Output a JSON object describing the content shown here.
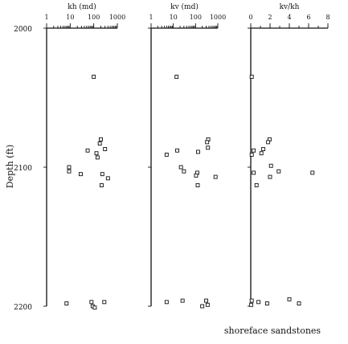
{
  "caption": "shoreface sandstones",
  "chart_data": {
    "type": "scatter",
    "y_axis": {
      "label": "Depth (ft)",
      "range": [
        2000,
        2200
      ],
      "ticks": [
        2000,
        2100,
        2200
      ],
      "tick_labels": [
        "2000",
        "2100",
        "2200"
      ],
      "inverted": true
    },
    "grid": false,
    "panels": [
      {
        "xlabel": "kh (md)",
        "scale": "log",
        "xlim": [
          1,
          1000
        ],
        "ticks": [
          1,
          10,
          100,
          1000
        ],
        "tick_labels": [
          "1",
          "10",
          "100",
          "1000"
        ],
        "points": [
          [
            100,
            2035
          ],
          [
            200,
            2080
          ],
          [
            180,
            2083
          ],
          [
            300,
            2087
          ],
          [
            55,
            2088
          ],
          [
            130,
            2090
          ],
          [
            145,
            2093
          ],
          [
            9,
            2100
          ],
          [
            9,
            2103
          ],
          [
            28,
            2105
          ],
          [
            230,
            2105
          ],
          [
            400,
            2108
          ],
          [
            215,
            2113
          ],
          [
            7,
            2198
          ],
          [
            80,
            2197
          ],
          [
            280,
            2197
          ],
          [
            90,
            2200
          ],
          [
            110,
            2201
          ]
        ]
      },
      {
        "xlabel": "kv (md)",
        "scale": "log",
        "xlim": [
          1,
          1000
        ],
        "ticks": [
          1,
          10,
          100,
          1000
        ],
        "tick_labels": [
          "1",
          "10",
          "100",
          "1000"
        ],
        "points": [
          [
            14,
            2035
          ],
          [
            370,
            2080
          ],
          [
            330,
            2082
          ],
          [
            15,
            2088
          ],
          [
            360,
            2086
          ],
          [
            130,
            2089
          ],
          [
            5,
            2091
          ],
          [
            22,
            2100
          ],
          [
            30,
            2103
          ],
          [
            120,
            2104
          ],
          [
            105,
            2106
          ],
          [
            790,
            2107
          ],
          [
            125,
            2113
          ],
          [
            5,
            2197
          ],
          [
            26,
            2196
          ],
          [
            300,
            2196
          ],
          [
            350,
            2199
          ],
          [
            200,
            2200
          ]
        ]
      },
      {
        "xlabel": "kv/kh",
        "scale": "linear",
        "xlim": [
          0,
          8
        ],
        "ticks": [
          0,
          2,
          4,
          6,
          8
        ],
        "tick_labels": [
          "0",
          "2",
          "4",
          "6",
          "8"
        ],
        "points": [
          [
            0.1,
            2035
          ],
          [
            1.95,
            2080
          ],
          [
            1.8,
            2082
          ],
          [
            0.3,
            2088
          ],
          [
            1.3,
            2087
          ],
          [
            1.1,
            2090
          ],
          [
            0.1,
            2091
          ],
          [
            2.1,
            2099
          ],
          [
            0.3,
            2104
          ],
          [
            2.9,
            2103
          ],
          [
            6.4,
            2104
          ],
          [
            2.0,
            2107
          ],
          [
            0.6,
            2113
          ],
          [
            0.1,
            2196
          ],
          [
            0.05,
            2199
          ],
          [
            0.8,
            2197
          ],
          [
            1.7,
            2198
          ],
          [
            4.0,
            2195
          ],
          [
            5.0,
            2198
          ]
        ]
      }
    ]
  }
}
